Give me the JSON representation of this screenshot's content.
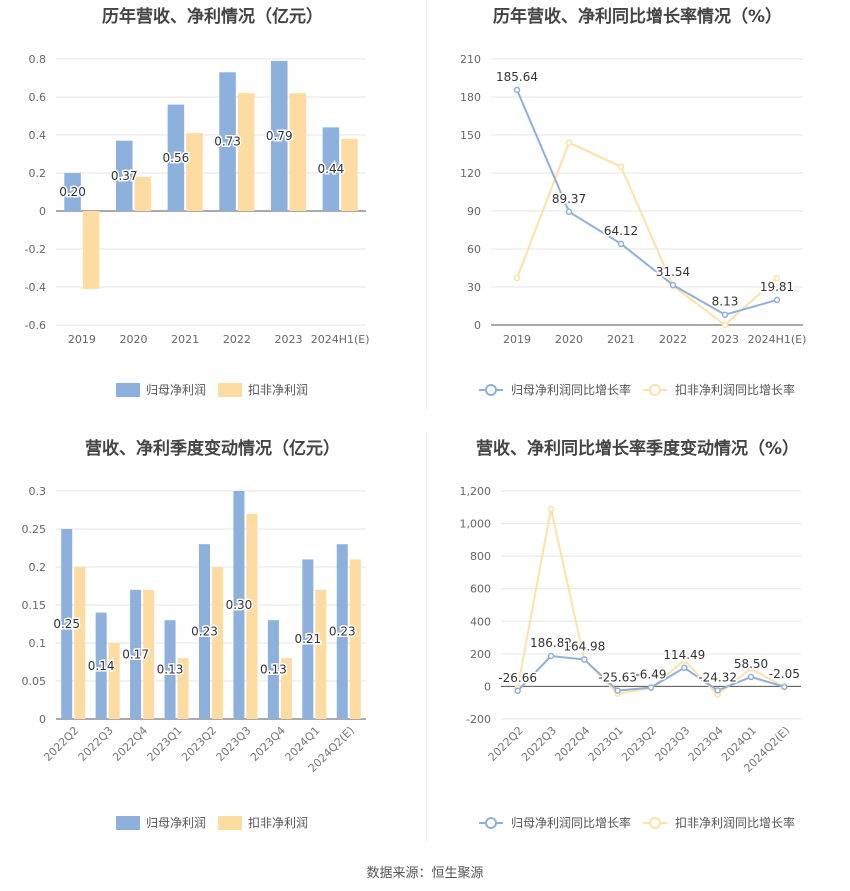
{
  "source": "数据来源：恒生聚源",
  "colors": {
    "blue": "#8eb0dc",
    "orange": "#fedba0",
    "blue_line": "#8eb0dc",
    "orange_line": "#fee1a6"
  },
  "chart_data": [
    {
      "type": "bar",
      "title": "历年营收、净利情况（亿元）",
      "categories": [
        "2019",
        "2020",
        "2021",
        "2022",
        "2023",
        "2024H1(E)"
      ],
      "series": [
        {
          "name": "归母净利润",
          "values": [
            0.2,
            0.37,
            0.56,
            0.73,
            0.79,
            0.44
          ],
          "labels": [
            "0.20",
            "0.37",
            "0.56",
            "0.73",
            "0.79",
            "0.44"
          ]
        },
        {
          "name": "扣非净利润",
          "values": [
            -0.41,
            0.18,
            0.41,
            0.62,
            0.62,
            0.38
          ]
        }
      ],
      "ylim": [
        -0.6,
        0.8
      ],
      "yticks": [
        "-0.6",
        "-0.4",
        "-0.2",
        "0",
        "0.2",
        "0.4",
        "0.6",
        "0.8"
      ],
      "legend": "bottom"
    },
    {
      "type": "line",
      "title": "历年营收、净利同比增长率情况（%）",
      "categories": [
        "2019",
        "2020",
        "2021",
        "2022",
        "2023",
        "2024H1(E)"
      ],
      "series": [
        {
          "name": "归母净利润同比增长率",
          "values": [
            185.64,
            89.37,
            64.12,
            31.54,
            8.13,
            19.81
          ],
          "labels": [
            "185.64",
            "89.37",
            "64.12",
            "31.54",
            "8.13",
            "19.81"
          ]
        },
        {
          "name": "扣非净利润同比增长率",
          "values": [
            37,
            144,
            125,
            31,
            0,
            37
          ]
        }
      ],
      "ylim": [
        0,
        210
      ],
      "yticks": [
        "0",
        "30",
        "60",
        "90",
        "120",
        "150",
        "180",
        "210"
      ],
      "legend": "bottom"
    },
    {
      "type": "bar",
      "title": "营收、净利季度变动情况（亿元）",
      "categories": [
        "2022Q2",
        "2022Q3",
        "2022Q4",
        "2023Q1",
        "2023Q2",
        "2023Q3",
        "2023Q4",
        "2024Q1",
        "2024Q2(E)"
      ],
      "series": [
        {
          "name": "归母净利润",
          "values": [
            0.25,
            0.14,
            0.17,
            0.13,
            0.23,
            0.3,
            0.13,
            0.21,
            0.23
          ],
          "labels": [
            "0.25",
            "0.14",
            "0.17",
            "0.13",
            "0.23",
            "0.30",
            "0.13",
            "0.21",
            "0.23"
          ]
        },
        {
          "name": "扣非净利润",
          "values": [
            0.2,
            0.1,
            0.17,
            0.08,
            0.2,
            0.27,
            0.08,
            0.17,
            0.21
          ]
        }
      ],
      "ylim": [
        0,
        0.3
      ],
      "yticks": [
        "0",
        "0.05",
        "0.1",
        "0.15",
        "0.2",
        "0.25",
        "0.3"
      ],
      "legend": "bottom"
    },
    {
      "type": "line",
      "title": "营收、净利同比增长率季度变动情况（%）",
      "categories": [
        "2022Q2",
        "2022Q3",
        "2022Q4",
        "2023Q1",
        "2023Q2",
        "2023Q3",
        "2023Q4",
        "2024Q1",
        "2024Q2(E)"
      ],
      "series": [
        {
          "name": "归母净利润同比增长率",
          "values": [
            -26.66,
            186.82,
            164.98,
            -25.63,
            -6.49,
            114.49,
            -24.32,
            58.5,
            -2.05
          ],
          "labels": [
            "-26.66",
            "186.82",
            "164.98",
            "-25.63",
            "-6.49",
            "114.49",
            "-24.32",
            "58.50",
            "-2.05"
          ]
        },
        {
          "name": "扣非净利润同比增长率",
          "values": [
            -10,
            1090,
            165,
            -45,
            -10,
            160,
            -50,
            110,
            -5
          ]
        }
      ],
      "ylim": [
        -200,
        1200
      ],
      "yticks": [
        "-200",
        "0",
        "200",
        "400",
        "600",
        "800",
        "1,000",
        "1,200"
      ],
      "legend": "bottom"
    }
  ]
}
